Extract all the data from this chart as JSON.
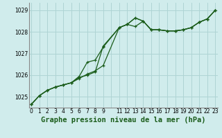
{
  "background_color": "#d0ecec",
  "grid_color": "#aed4d4",
  "line_color": "#1a5c1a",
  "title": "Graphe pression niveau de la mer (hPa)",
  "xlim": [
    -0.3,
    23.3
  ],
  "ylim": [
    1024.5,
    1029.35
  ],
  "yticks": [
    1025,
    1026,
    1027,
    1028,
    1029
  ],
  "xtick_labels": [
    "0",
    "1",
    "2",
    "3",
    "4",
    "5",
    "6",
    "7",
    "8",
    "9",
    "",
    "11",
    "12",
    "13",
    "14",
    "15",
    "16",
    "17",
    "18",
    "19",
    "20",
    "21",
    "22",
    "23"
  ],
  "xtick_positions": [
    0,
    1,
    2,
    3,
    4,
    5,
    6,
    7,
    8,
    9,
    10,
    11,
    12,
    13,
    14,
    15,
    16,
    17,
    18,
    19,
    20,
    21,
    22,
    23
  ],
  "series1_x": [
    0,
    1,
    2,
    3,
    4,
    5,
    6,
    7,
    8,
    9,
    11,
    12,
    13,
    14,
    15,
    16,
    17,
    18,
    19,
    20,
    21,
    22,
    23
  ],
  "series1_y": [
    1024.65,
    1025.05,
    1025.3,
    1025.45,
    1025.55,
    1025.65,
    1025.85,
    1026.05,
    1026.2,
    1026.45,
    1028.2,
    1028.35,
    1028.25,
    1028.5,
    1028.1,
    1028.1,
    1028.05,
    1028.05,
    1028.1,
    1028.2,
    1028.45,
    1028.6,
    1029.0
  ],
  "series2_x": [
    0,
    1,
    2,
    3,
    4,
    5,
    6,
    7,
    8,
    9,
    11,
    12,
    13,
    14,
    15,
    16,
    17,
    18,
    19,
    20,
    21,
    22,
    23
  ],
  "series2_y": [
    1024.65,
    1025.05,
    1025.3,
    1025.45,
    1025.55,
    1025.65,
    1025.9,
    1026.0,
    1026.15,
    1027.35,
    1028.2,
    1028.35,
    1028.65,
    1028.5,
    1028.1,
    1028.1,
    1028.05,
    1028.05,
    1028.1,
    1028.2,
    1028.45,
    1028.6,
    1029.0
  ],
  "series3_x": [
    0,
    1,
    2,
    3,
    4,
    5,
    6,
    7,
    8,
    9,
    11,
    12,
    13,
    14,
    15,
    16,
    17,
    18,
    19,
    20,
    21,
    22,
    23
  ],
  "series3_y": [
    1024.65,
    1025.05,
    1025.3,
    1025.45,
    1025.55,
    1025.65,
    1025.95,
    1026.6,
    1026.7,
    1027.3,
    1028.2,
    1028.35,
    1028.65,
    1028.5,
    1028.1,
    1028.1,
    1028.05,
    1028.05,
    1028.1,
    1028.2,
    1028.45,
    1028.6,
    1029.0
  ],
  "tick_fontsize": 5.5,
  "title_fontsize": 7.5
}
